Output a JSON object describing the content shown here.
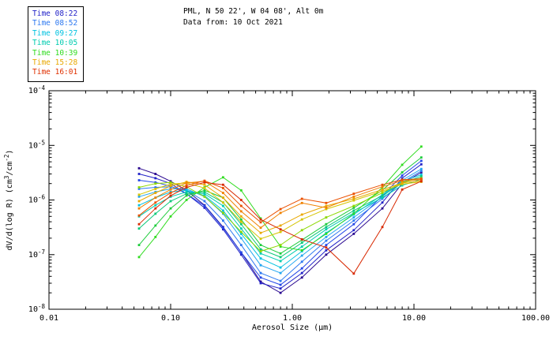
{
  "chart_data": {
    "type": "line",
    "title": "PML, N 50 22', W 04 08', Alt 0m",
    "subtitle": "Data from: 10 Oct 2021",
    "xlabel": "Aerosol Size (μm)",
    "ylabel": "dV/d(log R) (cm3/cm-2)",
    "ylabel_parts": [
      {
        "t": "dV/d(log R) (cm"
      },
      {
        "t": "3",
        "sup": true
      },
      {
        "t": "/cm"
      },
      {
        "t": "-2",
        "sup": true
      },
      {
        "t": ")"
      }
    ],
    "xscale": "log",
    "yscale": "log",
    "xlim": [
      0.01,
      100
    ],
    "ylim": [
      1e-08,
      0.0001
    ],
    "xticks": [
      0.01,
      0.1,
      1.0,
      10.0,
      100.0
    ],
    "xtick_labels": [
      "0.01",
      "0.10",
      "1.00",
      "10.00",
      "100.00"
    ],
    "yticks_exp": [
      -8,
      -7,
      -6,
      -5,
      -4
    ],
    "ytick_labels": [
      "10-8",
      "10-7",
      "10-6",
      "10-5",
      "10-4"
    ],
    "grid": false,
    "legend": {
      "position": "top-left",
      "entries": [
        {
          "label": "Time 08:22",
          "color": "#2222c8"
        },
        {
          "label": "Time 08:52",
          "color": "#2e79f0"
        },
        {
          "label": "Time 09:27",
          "color": "#00c2e0"
        },
        {
          "label": "Time 10:05",
          "color": "#00ccb0"
        },
        {
          "label": "Time 10:39",
          "color": "#30dc20"
        },
        {
          "label": "Time 15:28",
          "color": "#e8a800"
        },
        {
          "label": "Time 16:01",
          "color": "#e03000"
        }
      ]
    },
    "x": [
      0.055,
      0.075,
      0.1,
      0.135,
      0.19,
      0.27,
      0.38,
      0.55,
      0.8,
      1.2,
      1.9,
      3.2,
      5.5,
      8.0,
      11.5
    ],
    "series": [
      {
        "color": "#2a0890",
        "y": [
          3.8e-06,
          3e-06,
          2.2e-06,
          1.5e-06,
          8e-07,
          3.2e-07,
          1.1e-07,
          3.2e-08,
          2e-08,
          3.8e-08,
          1e-07,
          2.4e-07,
          7e-07,
          2e-06,
          3.2e-06
        ]
      },
      {
        "color": "#2222c8",
        "y": [
          3e-06,
          2.5e-06,
          2e-06,
          1.3e-06,
          7.2e-07,
          2.9e-07,
          1e-07,
          3e-08,
          2.4e-08,
          4.6e-08,
          1.2e-07,
          2.8e-07,
          9e-07,
          2.5e-06,
          4.5e-06
        ]
      },
      {
        "color": "#2448e8",
        "y": [
          2.3e-06,
          2.1e-06,
          1.8e-06,
          1.3e-06,
          7.8e-07,
          3.1e-07,
          1.1e-07,
          3.8e-08,
          2.8e-08,
          5.6e-08,
          1.5e-07,
          3.6e-07,
          1.2e-06,
          2.8e-06,
          5.2e-06
        ]
      },
      {
        "color": "#2e79f0",
        "y": [
          1.6e-06,
          1.7e-06,
          1.75e-06,
          1.5e-06,
          9.5e-07,
          4.2e-07,
          1.5e-07,
          4.6e-08,
          3.3e-08,
          7.4e-08,
          1.8e-07,
          4.2e-07,
          1.05e-06,
          2.1e-06,
          3.4e-06
        ]
      },
      {
        "color": "#22a6f0",
        "y": [
          1.15e-06,
          1.4e-06,
          1.6e-06,
          1.6e-06,
          1.15e-06,
          5.6e-07,
          2e-07,
          6.4e-08,
          4.6e-08,
          9.6e-08,
          2.1e-07,
          4.8e-07,
          1.15e-06,
          2.3e-06,
          3.7e-06
        ]
      },
      {
        "color": "#00c2e0",
        "y": [
          8e-07,
          1.1e-06,
          1.4e-06,
          1.5e-06,
          1.2e-06,
          6.4e-07,
          2.4e-07,
          8.5e-08,
          5.8e-08,
          1.15e-07,
          2.5e-07,
          5.4e-07,
          1.25e-06,
          2.2e-06,
          2.9e-06
        ]
      },
      {
        "color": "#00ccb0",
        "y": [
          5e-07,
          8e-07,
          1.15e-06,
          1.4e-06,
          1.3e-06,
          7.8e-07,
          3e-07,
          1.05e-07,
          7.6e-08,
          1.4e-07,
          2.9e-07,
          5.8e-07,
          1.1e-06,
          1.85e-06,
          2.4e-06
        ]
      },
      {
        "color": "#0cc878",
        "y": [
          3e-07,
          5.6e-07,
          9.5e-07,
          1.3e-06,
          1.4e-06,
          9e-07,
          3.6e-07,
          1.25e-07,
          9e-08,
          1.65e-07,
          3.2e-07,
          6.4e-07,
          1.2e-06,
          2.05e-06,
          2.7e-06
        ]
      },
      {
        "color": "#1ecc3c",
        "y": [
          1.5e-07,
          3.4e-07,
          7e-07,
          1.2e-06,
          1.5e-06,
          1.1e-06,
          4.4e-07,
          1.5e-07,
          1.05e-07,
          1.85e-07,
          3.6e-07,
          7.2e-07,
          1.5e-06,
          3.2e-06,
          6e-06
        ]
      },
      {
        "color": "#30dc20",
        "y": [
          9e-08,
          2.1e-07,
          5e-07,
          1e-06,
          1.7e-06,
          2.6e-06,
          1.5e-06,
          4.6e-07,
          1.4e-07,
          1.2e-07,
          2.4e-07,
          5.6e-07,
          1.7e-06,
          4.4e-06,
          9.5e-06
        ]
      },
      {
        "color": "#8cd800",
        "y": [
          1.7e-06,
          2e-06,
          2.1e-06,
          1.75e-06,
          1.15e-06,
          5.8e-07,
          2.6e-07,
          1.15e-07,
          1.5e-07,
          2.8e-07,
          4.8e-07,
          7.8e-07,
          1.35e-06,
          2.1e-06,
          2.5e-06
        ]
      },
      {
        "color": "#d4c400",
        "y": [
          1.25e-06,
          1.6e-06,
          1.95e-06,
          2.05e-06,
          1.65e-06,
          9e-07,
          4e-07,
          1.95e-07,
          2.6e-07,
          4.4e-07,
          6.8e-07,
          9.8e-07,
          1.45e-06,
          1.95e-06,
          2.15e-06
        ]
      },
      {
        "color": "#e8a800",
        "y": [
          9.5e-07,
          1.35e-06,
          1.8e-06,
          2.15e-06,
          1.9e-06,
          1.1e-06,
          5e-07,
          2.5e-07,
          3.4e-07,
          5.4e-07,
          7.8e-07,
          1.05e-06,
          1.55e-06,
          2.05e-06,
          2.25e-06
        ]
      },
      {
        "color": "#f08000",
        "y": [
          7e-07,
          1.1e-06,
          1.55e-06,
          2.05e-06,
          2.2e-06,
          1.35e-06,
          6.2e-07,
          3.1e-07,
          5.8e-07,
          8.8e-07,
          7.2e-07,
          1.15e-06,
          1.75e-06,
          2.25e-06,
          2.35e-06
        ]
      },
      {
        "color": "#ea5000",
        "y": [
          5.2e-07,
          9e-07,
          1.35e-06,
          1.85e-06,
          2.25e-06,
          1.65e-06,
          7.8e-07,
          3.9e-07,
          6.8e-07,
          1.05e-06,
          8.8e-07,
          1.3e-06,
          1.9e-06,
          2.35e-06,
          2.45e-06
        ]
      },
      {
        "color": "#d82800",
        "y": [
          3.6e-07,
          7e-07,
          1.2e-06,
          1.7e-06,
          2.1e-06,
          1.9e-06,
          1e-06,
          4.4e-07,
          2.9e-07,
          1.9e-07,
          1.35e-07,
          4.5e-08,
          3.2e-07,
          1.55e-06,
          2.2e-06
        ]
      }
    ]
  }
}
